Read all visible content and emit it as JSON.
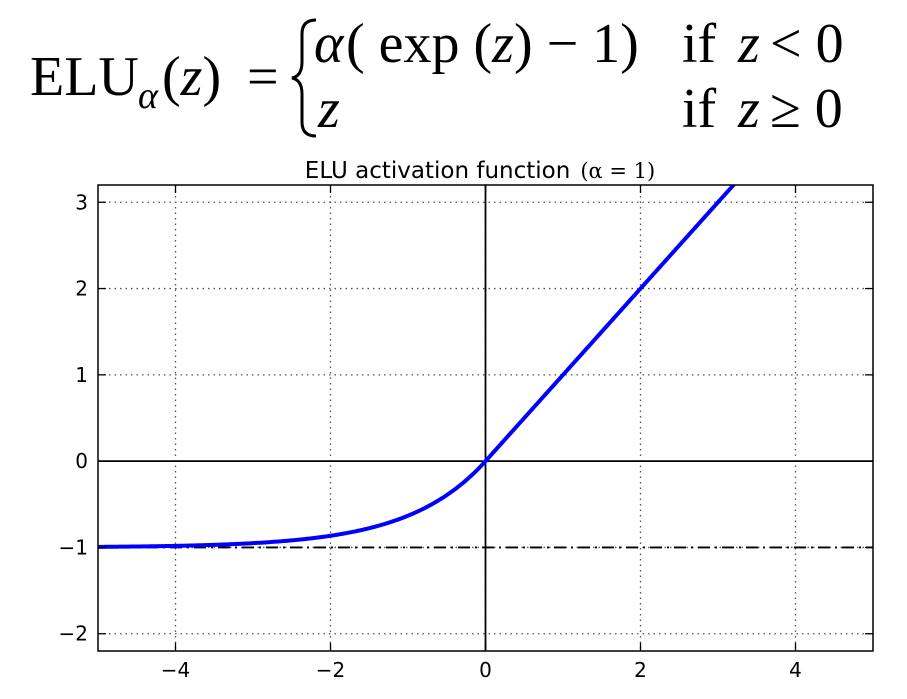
{
  "formula": {
    "lhs_name": "ELU",
    "lhs_subscript": "α",
    "lhs_arg": "(z)",
    "equals": "=",
    "case1_expr_alpha": "α",
    "case1_expr_rest": "( exp (z) − 1)",
    "case1_cond_if": "if",
    "case1_cond_var": "z",
    "case1_cond_rel": "< 0",
    "case2_expr": "z",
    "case2_cond_if": "if",
    "case2_cond_var": "z",
    "case2_cond_rel": "≥ 0"
  },
  "chart_data": {
    "type": "line",
    "title": "ELU activation function",
    "title_math": "(α = 1)",
    "alpha": 1,
    "xlim": [
      -5,
      5
    ],
    "ylim": [
      -2.2,
      3.2
    ],
    "x_ticks": [
      -4,
      -2,
      0,
      2,
      4
    ],
    "x_tick_labels": [
      "−4",
      "−2",
      "0",
      "2",
      "4"
    ],
    "y_ticks": [
      3,
      2,
      1,
      0,
      -1,
      -2
    ],
    "y_tick_labels": [
      "3",
      "2",
      "1",
      "0",
      "−1",
      "−2"
    ],
    "grid": true,
    "series": [
      {
        "function": "elu",
        "color": "#0000ff",
        "x_range": [
          -5,
          5
        ]
      }
    ],
    "reference_lines": [
      {
        "orientation": "horizontal",
        "value": 0,
        "style": "solid",
        "color": "#000000"
      },
      {
        "orientation": "vertical",
        "value": 0,
        "style": "solid",
        "color": "#000000"
      },
      {
        "orientation": "horizontal",
        "value": -1,
        "style": "dashdot",
        "color": "#000000"
      }
    ]
  }
}
